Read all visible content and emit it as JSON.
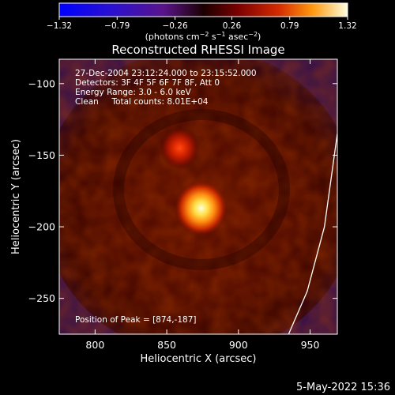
{
  "chart_data": {
    "type": "heatmap",
    "title": "Reconstructed RHESSI Image",
    "xlabel": "Heliocentric X (arcsec)",
    "ylabel": "Heliocentric Y (arcsec)",
    "xlim": [
      775,
      969
    ],
    "ylim": [
      -275,
      -83
    ],
    "x_ticks": [
      800,
      850,
      900,
      950
    ],
    "y_ticks": [
      -100,
      -150,
      -200,
      -250
    ],
    "colormap": "red-temperature with blue-purple negative range",
    "colorbar": {
      "min": -1.32,
      "max": 1.32,
      "ticks": [
        -1.32,
        -0.79,
        -0.26,
        0.26,
        0.79,
        1.32
      ],
      "tick_labels": [
        "−1.32",
        "−0.79",
        "−0.26",
        "0.26",
        "0.79",
        "1.32"
      ],
      "units_label": "(photons cm",
      "units_exp1": "−2",
      "units_mid": " s",
      "units_exp2": "−1",
      "units_end": " asec",
      "units_exp3": "−2",
      "units_close": ")"
    },
    "annotation_lines": [
      "27-Dec-2004 23:12:24.000 to 23:15:52.000",
      "Detectors: 3F 4F 5F 6F 7F 8F, Att 0",
      "Energy Range: 3.0 - 6.0 keV",
      "Clean     Total counts: 8.01E+04"
    ],
    "peak_label": "Position of Peak = [874,-187]",
    "sources": [
      {
        "x": 874,
        "y": -187,
        "intensity": 1.32
      },
      {
        "x": 859,
        "y": -145,
        "intensity": 0.75
      }
    ],
    "limb_curve": [
      [
        969,
        -135
      ],
      [
        960,
        -200
      ],
      [
        948,
        -245
      ],
      [
        935,
        -275
      ]
    ],
    "grid": false
  },
  "timestamp": "5-May-2022 15:36"
}
